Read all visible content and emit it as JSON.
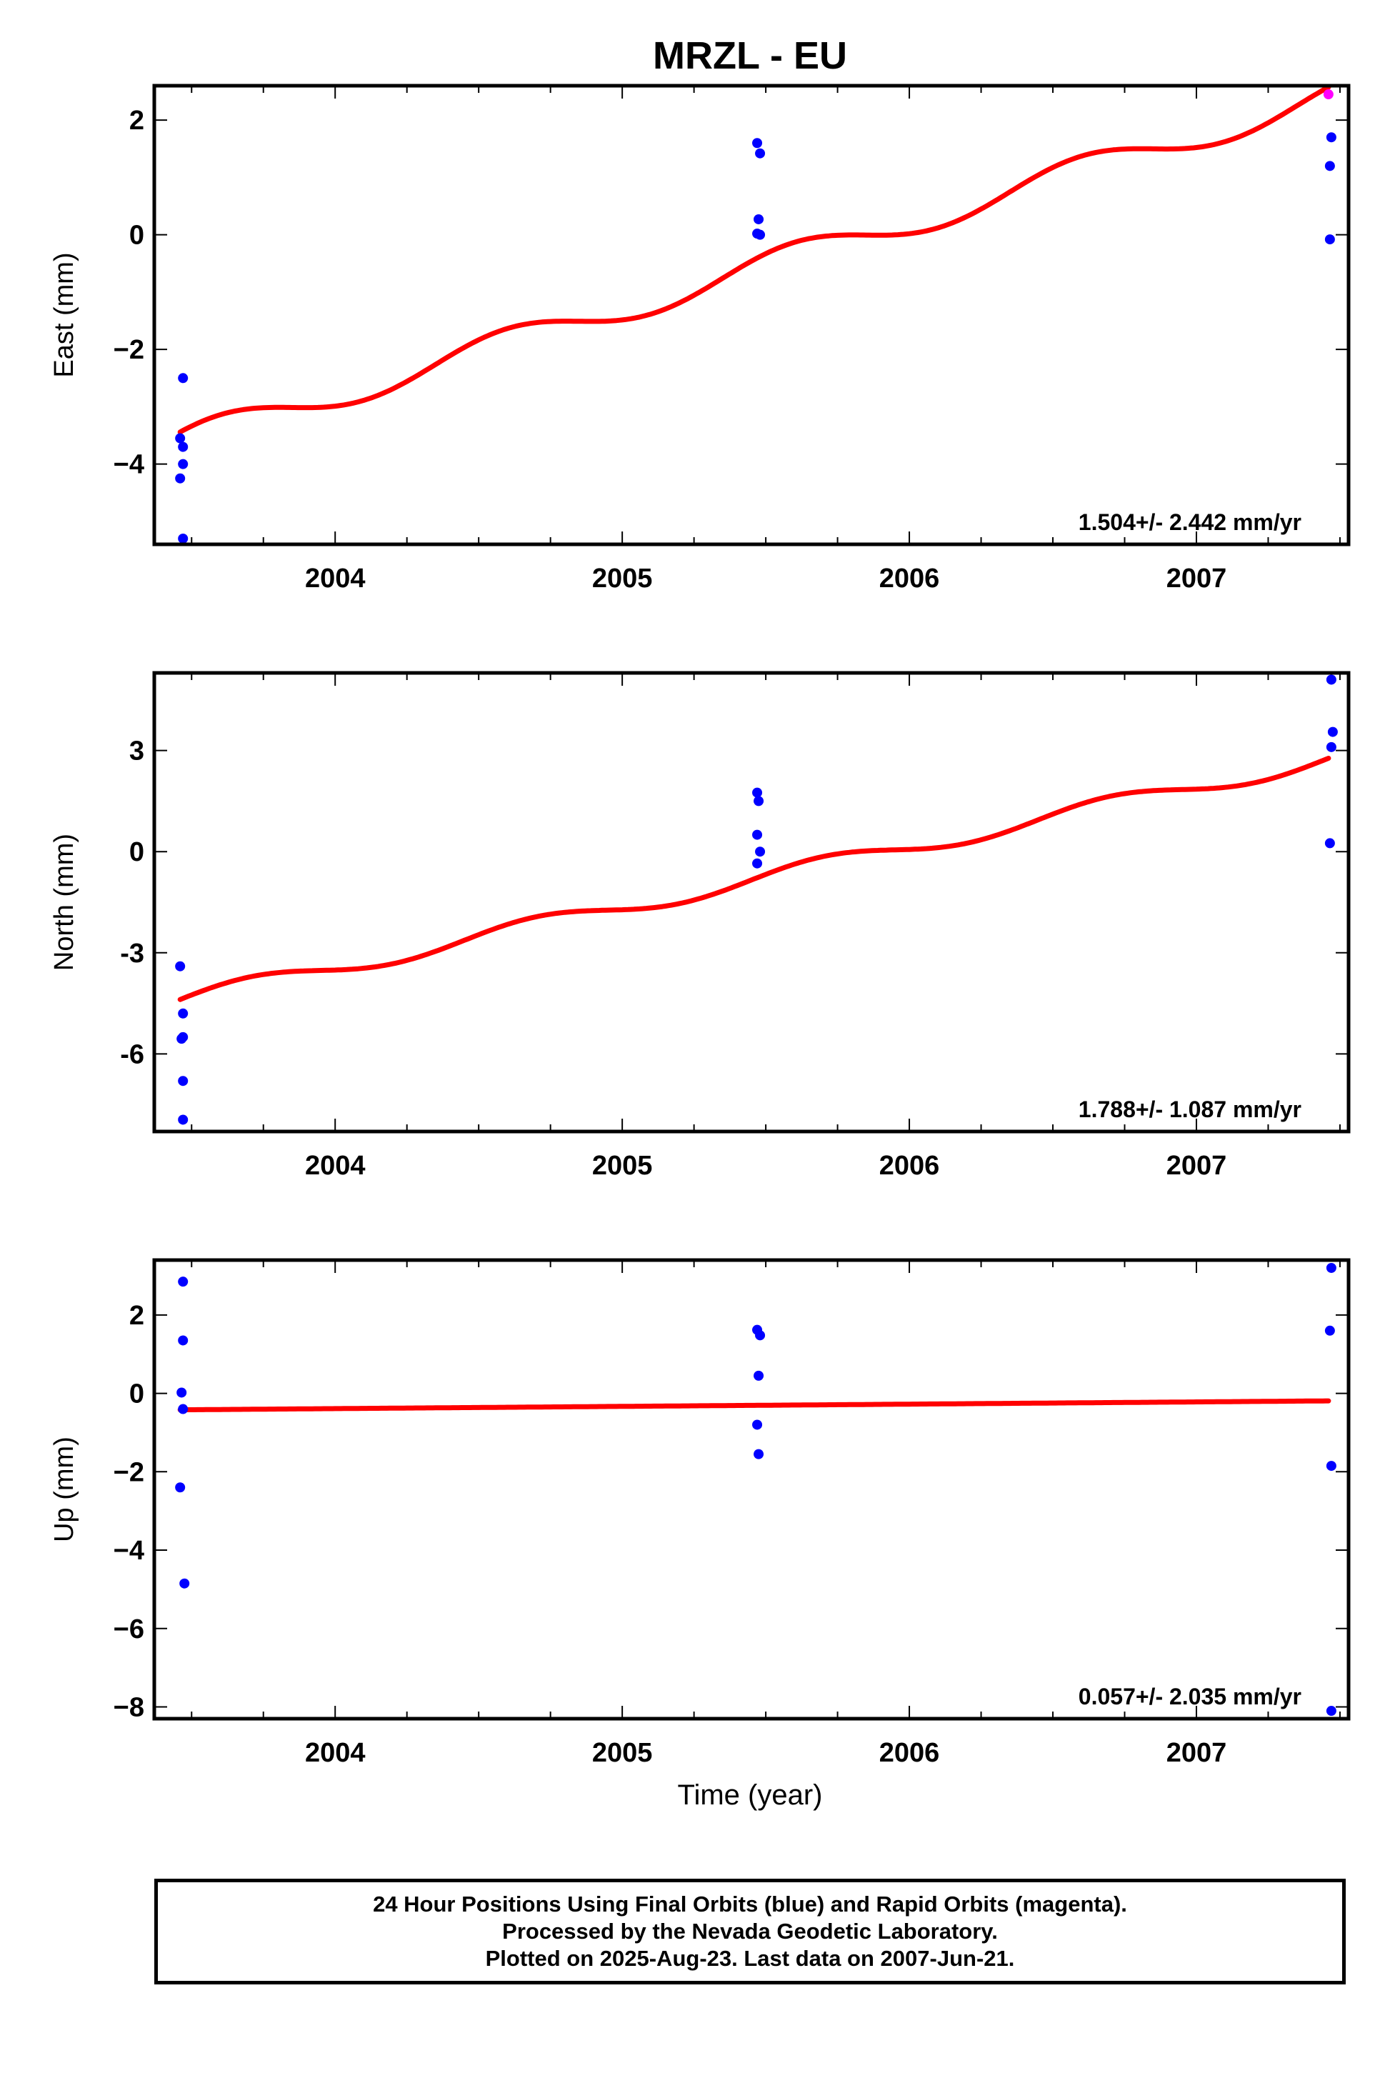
{
  "figure": {
    "title": "MRZL - EU",
    "xlabel": "Time (year)",
    "footer": [
      "24 Hour Positions Using Final Orbits (blue) and Rapid Orbits (magenta).",
      "Processed by the Nevada Geodetic Laboratory.",
      "Plotted on 2025-Aug-23. Last data on 2007-Jun-21."
    ]
  },
  "colors": {
    "final_orbits": "#0000ff",
    "fit_line": "#ff0000",
    "rapid_orbits": "#ff00ff"
  },
  "chart_data": [
    {
      "type": "scatter",
      "ylabel": "East (mm)",
      "xlim": [
        2003.37,
        2007.53
      ],
      "ylim": [
        -5.4,
        2.6
      ],
      "xticks": [
        2004,
        2005,
        2006,
        2007
      ],
      "xtick_labels": [
        "2004",
        "2005",
        "2006",
        "2007"
      ],
      "yticks": [
        2,
        0,
        -2,
        -4
      ],
      "ytick_labels": [
        "2",
        "0",
        "−2",
        "−4"
      ],
      "rate_label": "1.504+/- 2.442 mm/yr",
      "fit": {
        "rate": 1.504,
        "x_start": 2003.46,
        "y_start": -3.6,
        "annual_amp": 0.25,
        "annual_phase": 0.35
      },
      "series": [
        {
          "name": "Final Orbits",
          "color": "#0000ff",
          "points": [
            [
              2003.47,
              -2.5
            ],
            [
              2003.46,
              -3.55
            ],
            [
              2003.47,
              -3.7
            ],
            [
              2003.47,
              -4.0
            ],
            [
              2003.46,
              -4.25
            ],
            [
              2003.47,
              -5.3
            ],
            [
              2005.47,
              1.6
            ],
            [
              2005.48,
              1.42
            ],
            [
              2005.475,
              0.27
            ],
            [
              2005.47,
              0.02
            ],
            [
              2005.48,
              0.0
            ],
            [
              2007.47,
              1.7
            ],
            [
              2007.465,
              1.2
            ],
            [
              2007.465,
              -0.08
            ]
          ]
        },
        {
          "name": "Rapid Orbits",
          "color": "#ff00ff",
          "points": [
            [
              2007.46,
              2.45
            ]
          ]
        }
      ]
    },
    {
      "type": "scatter",
      "ylabel": "North (mm)",
      "xlim": [
        2003.37,
        2007.53
      ],
      "ylim": [
        -8.3,
        5.3
      ],
      "xticks": [
        2004,
        2005,
        2006,
        2007
      ],
      "xtick_labels": [
        "2004",
        "2005",
        "2006",
        "2007"
      ],
      "yticks": [
        3,
        0,
        -3,
        -6
      ],
      "ytick_labels": [
        "3",
        "0",
        "-3",
        "-6"
      ],
      "rate_label": "1.788+/- 1.087 mm/yr",
      "fit": {
        "rate": 1.788,
        "x_start": 2003.46,
        "y_start": -4.4,
        "annual_amp": 0.25,
        "annual_phase": 0.45
      },
      "series": [
        {
          "name": "Final Orbits",
          "color": "#0000ff",
          "points": [
            [
              2003.46,
              -3.4
            ],
            [
              2003.47,
              -4.8
            ],
            [
              2003.47,
              -5.5
            ],
            [
              2003.465,
              -5.55
            ],
            [
              2003.47,
              -6.8
            ],
            [
              2003.47,
              -7.95
            ],
            [
              2005.47,
              1.75
            ],
            [
              2005.475,
              1.5
            ],
            [
              2005.47,
              0.5
            ],
            [
              2005.48,
              0.0
            ],
            [
              2005.47,
              -0.35
            ],
            [
              2007.47,
              5.1
            ],
            [
              2007.475,
              3.55
            ],
            [
              2007.47,
              3.1
            ],
            [
              2007.465,
              0.25
            ]
          ]
        }
      ]
    },
    {
      "type": "scatter",
      "ylabel": "Up (mm)",
      "xlim": [
        2003.37,
        2007.53
      ],
      "ylim": [
        -8.3,
        3.4
      ],
      "xticks": [
        2004,
        2005,
        2006,
        2007
      ],
      "xtick_labels": [
        "2004",
        "2005",
        "2006",
        "2007"
      ],
      "yticks": [
        2,
        0,
        -2,
        -4,
        -6,
        -8
      ],
      "ytick_labels": [
        "2",
        "0",
        "−2",
        "−4",
        "−6",
        "−8"
      ],
      "rate_label": "0.057+/- 2.035 mm/yr",
      "fit": {
        "rate": 0.057,
        "x_start": 2003.46,
        "y_start": -0.42,
        "annual_amp": 0,
        "annual_phase": 0
      },
      "series": [
        {
          "name": "Final Orbits",
          "color": "#0000ff",
          "points": [
            [
              2003.47,
              2.85
            ],
            [
              2003.47,
              1.35
            ],
            [
              2003.465,
              0.02
            ],
            [
              2003.47,
              -0.4
            ],
            [
              2003.46,
              -2.4
            ],
            [
              2003.475,
              -4.85
            ],
            [
              2005.47,
              1.62
            ],
            [
              2005.48,
              1.48
            ],
            [
              2005.475,
              0.45
            ],
            [
              2005.47,
              -0.8
            ],
            [
              2005.475,
              -1.55
            ],
            [
              2007.47,
              3.2
            ],
            [
              2007.465,
              1.6
            ],
            [
              2007.47,
              -1.85
            ],
            [
              2007.47,
              -8.1
            ]
          ]
        }
      ]
    }
  ]
}
